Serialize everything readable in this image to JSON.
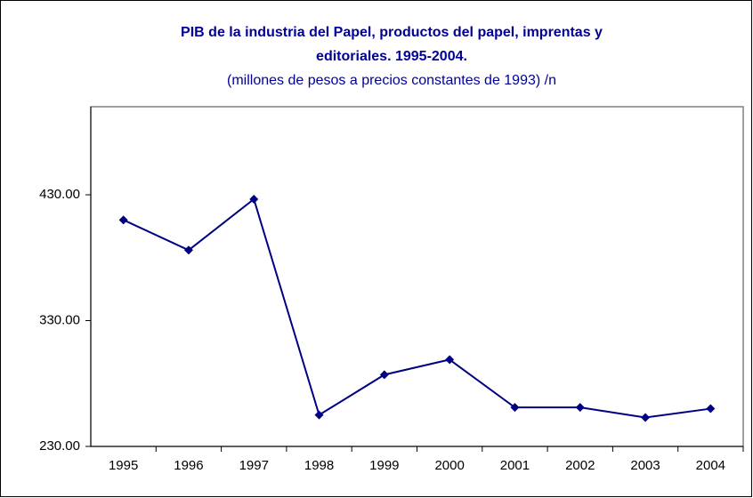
{
  "chart_data": {
    "type": "line",
    "title": [
      "PIB de la industria del Papel,  productos del papel, imprentas y",
      "editoriales.    1995-2004."
    ],
    "subtitle": "(millones de pesos a precios constantes de 1993) /n",
    "categories": [
      "1995",
      "1996",
      "1997",
      "1998",
      "1999",
      "2000",
      "2001",
      "2002",
      "2003",
      "2004"
    ],
    "values": [
      410,
      386,
      426.5,
      255,
      287,
      299,
      261,
      261,
      253,
      260
    ],
    "color": "#000080",
    "ylim": [
      230,
      500
    ],
    "yticks": [
      {
        "value": 230,
        "label": "230.00"
      },
      {
        "value": 330,
        "label": "330.00"
      },
      {
        "value": 430,
        "label": "430.00"
      }
    ],
    "grid": false
  }
}
